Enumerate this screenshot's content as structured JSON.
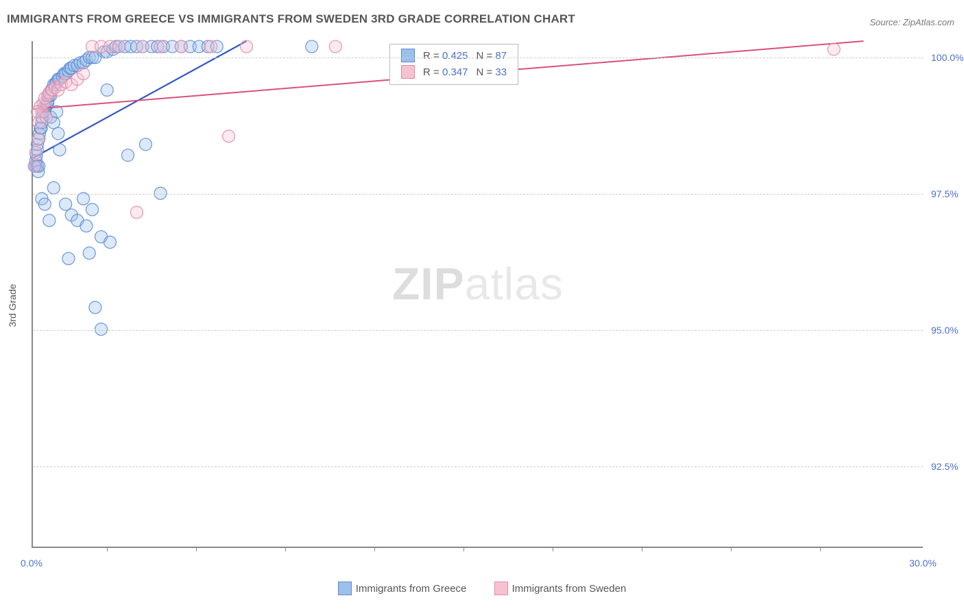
{
  "title": "IMMIGRANTS FROM GREECE VS IMMIGRANTS FROM SWEDEN 3RD GRADE CORRELATION CHART",
  "source_prefix": "Source: ",
  "source_name": "ZipAtlas.com",
  "watermark_bold": "ZIP",
  "watermark_light": "atlas",
  "ylabel": "3rd Grade",
  "chart": {
    "type": "scatter",
    "xlim": [
      0.0,
      30.0
    ],
    "ylim": [
      91.0,
      100.3
    ],
    "x_ticks": [
      0.0,
      30.0
    ],
    "x_tick_labels": [
      "0.0%",
      "30.0%"
    ],
    "x_minor_ticks_approx": [
      2.5,
      5.5,
      8.5,
      11.5,
      14.5,
      17.5,
      20.5,
      23.5,
      26.5
    ],
    "y_ticks": [
      92.5,
      95.0,
      97.5,
      100.0
    ],
    "y_tick_labels": [
      "92.5%",
      "95.0%",
      "97.5%",
      "100.0%"
    ],
    "background_color": "#ffffff",
    "grid_color": "#cccccc",
    "axis_color": "#888888",
    "tick_label_color": "#4a6fd0",
    "marker_radius": 9,
    "marker_fill_opacity": 0.35,
    "marker_stroke_opacity": 0.9,
    "marker_stroke_width": 1.2,
    "series": [
      {
        "name": "Immigrants from Greece",
        "color_stroke": "#5b8bd4",
        "color_fill": "#9cc0ea",
        "R_label": "R = ",
        "R_value": "0.425",
        "N_label": "N = ",
        "N_value": "87",
        "trend": {
          "x1": 0.0,
          "y1": 98.15,
          "x2": 7.2,
          "y2": 100.3,
          "color": "#2f56c5",
          "width": 2.2
        },
        "points": [
          [
            0.05,
            98.0
          ],
          [
            0.1,
            98.0
          ],
          [
            0.1,
            98.1
          ],
          [
            0.12,
            98.2
          ],
          [
            0.15,
            98.3
          ],
          [
            0.15,
            98.4
          ],
          [
            0.2,
            98.5
          ],
          [
            0.22,
            98.6
          ],
          [
            0.25,
            98.7
          ],
          [
            0.28,
            98.7
          ],
          [
            0.3,
            98.8
          ],
          [
            0.3,
            98.9
          ],
          [
            0.35,
            99.0
          ],
          [
            0.4,
            99.0
          ],
          [
            0.4,
            99.1
          ],
          [
            0.45,
            99.1
          ],
          [
            0.5,
            99.15
          ],
          [
            0.5,
            99.2
          ],
          [
            0.55,
            99.3
          ],
          [
            0.6,
            99.3
          ],
          [
            0.62,
            99.4
          ],
          [
            0.65,
            99.4
          ],
          [
            0.7,
            99.5
          ],
          [
            0.75,
            99.5
          ],
          [
            0.8,
            99.55
          ],
          [
            0.85,
            99.6
          ],
          [
            0.9,
            99.6
          ],
          [
            1.0,
            99.65
          ],
          [
            1.05,
            99.7
          ],
          [
            1.1,
            99.7
          ],
          [
            1.2,
            99.75
          ],
          [
            1.25,
            99.8
          ],
          [
            1.3,
            99.8
          ],
          [
            1.4,
            99.85
          ],
          [
            1.5,
            99.85
          ],
          [
            1.6,
            99.9
          ],
          [
            1.7,
            99.9
          ],
          [
            1.8,
            99.95
          ],
          [
            1.9,
            100.0
          ],
          [
            2.0,
            100.0
          ],
          [
            2.1,
            100.0
          ],
          [
            2.4,
            100.1
          ],
          [
            2.5,
            100.1
          ],
          [
            2.7,
            100.15
          ],
          [
            2.8,
            100.2
          ],
          [
            2.9,
            100.2
          ],
          [
            3.1,
            100.2
          ],
          [
            3.3,
            100.2
          ],
          [
            3.5,
            100.2
          ],
          [
            3.7,
            100.2
          ],
          [
            4.0,
            100.2
          ],
          [
            4.2,
            100.2
          ],
          [
            4.4,
            100.2
          ],
          [
            4.7,
            100.2
          ],
          [
            5.0,
            100.2
          ],
          [
            5.3,
            100.2
          ],
          [
            5.6,
            100.2
          ],
          [
            5.9,
            100.2
          ],
          [
            6.2,
            100.2
          ],
          [
            9.4,
            100.2
          ],
          [
            0.6,
            98.9
          ],
          [
            0.7,
            98.8
          ],
          [
            0.8,
            99.0
          ],
          [
            0.85,
            98.6
          ],
          [
            0.9,
            98.3
          ],
          [
            1.1,
            97.3
          ],
          [
            1.3,
            97.1
          ],
          [
            1.5,
            97.0
          ],
          [
            1.7,
            97.4
          ],
          [
            1.8,
            96.9
          ],
          [
            2.0,
            97.2
          ],
          [
            2.3,
            96.7
          ],
          [
            2.5,
            99.4
          ],
          [
            2.6,
            96.6
          ],
          [
            3.2,
            98.2
          ],
          [
            3.8,
            98.4
          ],
          [
            4.3,
            97.5
          ],
          [
            0.3,
            97.4
          ],
          [
            0.4,
            97.3
          ],
          [
            0.55,
            97.0
          ],
          [
            0.7,
            97.6
          ],
          [
            2.1,
            95.4
          ],
          [
            2.3,
            95.0
          ],
          [
            1.2,
            96.3
          ],
          [
            1.9,
            96.4
          ],
          [
            0.15,
            98.0
          ],
          [
            0.18,
            97.9
          ],
          [
            0.2,
            98.0
          ]
        ]
      },
      {
        "name": "Immigrants from Sweden",
        "color_stroke": "#e u",
        "color_stroke_fixed": "#e58aa5",
        "color_fill": "#f4c2d0",
        "R_label": "R = ",
        "R_value": "0.347",
        "N_label": "N = ",
        "N_value": "33",
        "trend": {
          "x1": 0.0,
          "y1": 99.05,
          "x2": 28.0,
          "y2": 100.3,
          "color": "#d94f7a",
          "width": 2.0
        },
        "points": [
          [
            0.05,
            98.0
          ],
          [
            0.1,
            98.25
          ],
          [
            0.2,
            98.8
          ],
          [
            0.25,
            99.1
          ],
          [
            0.3,
            99.0
          ],
          [
            0.35,
            99.15
          ],
          [
            0.4,
            99.25
          ],
          [
            0.5,
            99.3
          ],
          [
            0.55,
            99.35
          ],
          [
            0.65,
            99.4
          ],
          [
            0.75,
            99.45
          ],
          [
            0.85,
            99.4
          ],
          [
            0.95,
            99.5
          ],
          [
            1.1,
            99.55
          ],
          [
            1.3,
            99.5
          ],
          [
            1.5,
            99.6
          ],
          [
            1.7,
            99.7
          ],
          [
            2.0,
            100.2
          ],
          [
            2.3,
            100.2
          ],
          [
            2.6,
            100.2
          ],
          [
            2.9,
            100.2
          ],
          [
            3.7,
            100.2
          ],
          [
            4.3,
            100.2
          ],
          [
            5.0,
            100.2
          ],
          [
            6.0,
            100.2
          ],
          [
            7.2,
            100.2
          ],
          [
            10.2,
            100.2
          ],
          [
            6.6,
            98.55
          ],
          [
            3.5,
            97.15
          ],
          [
            27.0,
            100.15
          ],
          [
            0.15,
            99.0
          ],
          [
            0.18,
            98.5
          ],
          [
            0.45,
            98.9
          ]
        ]
      }
    ]
  },
  "legend": {
    "items": [
      {
        "label": "Immigrants from Greece",
        "fill": "#9cc0ea",
        "stroke": "#5b8bd4"
      },
      {
        "label": "Immigrants from Sweden",
        "fill": "#f4c2d0",
        "stroke": "#e58aa5"
      }
    ]
  }
}
